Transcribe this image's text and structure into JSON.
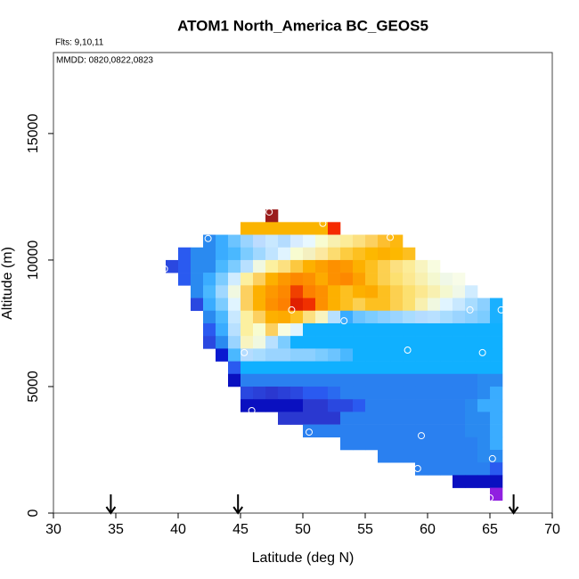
{
  "chart_data": {
    "type": "heatmap",
    "title": "ATOM1 North_America BC_GEOS5",
    "subtitle": "Flts: 9,10,11",
    "annotation": "MMDD: 0820,0822,0823",
    "x_label": "Latitude (deg N)",
    "y_label": "Altitude (m)",
    "xlim": [
      30,
      70
    ],
    "xticks": [
      30,
      35,
      40,
      45,
      50,
      55,
      60,
      65,
      70
    ],
    "ylim": [
      0,
      18200
    ],
    "yticks": [
      0,
      5000,
      10000,
      15000
    ],
    "rows": [
      {
        "y": 11500,
        "x0": 47,
        "colors": [
          "#9b1c1c"
        ]
      },
      {
        "y": 11000,
        "x0": 45,
        "colors": [
          "#fbb400",
          "#fbb400",
          "#fbb400",
          "#fbb400",
          "#fbb400",
          "#fbb400",
          "#fbb400",
          "#f52a00"
        ]
      },
      {
        "y": 10500,
        "x0": 42,
        "colors": [
          "#2a8af0",
          "#3aacff",
          "#6cc4ff",
          "#9ad4ff",
          "#bcdcff",
          "#c8e8ff",
          "#b4dcff",
          "#d8ecff",
          "#e8f8ff",
          "#f8fcd0",
          "#f8f0b0",
          "#fcec98",
          "#fce080",
          "#fcd060",
          "#fdbf30",
          "#fdb810"
        ]
      },
      {
        "y": 10000,
        "x0": 40,
        "colors": [
          "#2a5af0",
          "#2a8af0",
          "#2a8af0",
          "#3aacff",
          "#4ab8ff",
          "#7cccff",
          "#a0d8ff",
          "#c0e4ff",
          "#e0f4ff",
          "#f8fcd0",
          "#f4f0c0",
          "#fce8a0",
          "#fcdc70",
          "#fdcc40",
          "#fdc020",
          "#fdb800",
          "#fdb000",
          "#fdb800",
          "#fdbf20"
        ]
      },
      {
        "y": 9500,
        "x0": 39,
        "colors": [
          "#2a48e0",
          "#2a5af0",
          "#2a8af0",
          "#2a8af0",
          "#4ab8ff",
          "#7cccff",
          "#b8e0ff",
          "#f0f8e0",
          "#fcf0a0",
          "#fce080",
          "#fcc840",
          "#fdb000",
          "#fda000",
          "#fd9000",
          "#fd9800",
          "#fdb000",
          "#fdc020",
          "#fdd050",
          "#fce080",
          "#fcec98",
          "#f8f4c0",
          "#f8fce0"
        ]
      },
      {
        "y": 9000,
        "x0": 40,
        "colors": [
          "#2a5af0",
          "#2a8af0",
          "#3aacff",
          "#7cccff",
          "#d0ecff",
          "#fcf0a0",
          "#fcd060",
          "#fdb000",
          "#fd9800",
          "#fd8800",
          "#fd9000",
          "#fdaa00",
          "#fd9000",
          "#fd8800",
          "#fda000",
          "#fdc020",
          "#fcd050",
          "#fce070",
          "#fce890",
          "#f8f0b0",
          "#f4f8d0",
          "#f0f8e8",
          "#f8fce8"
        ]
      },
      {
        "y": 8500,
        "x0": 41,
        "colors": [
          "#2a8af0",
          "#4ab8ff",
          "#a0d8ff",
          "#f0f8e0",
          "#fcd060",
          "#fdb000",
          "#fd9800",
          "#fd8800",
          "#f04000",
          "#fd8000",
          "#fd9000",
          "#fdb000",
          "#fdc020",
          "#fdb000",
          "#fdaa00",
          "#fdc020",
          "#fcd050",
          "#fce070",
          "#fce890",
          "#f8f0b0",
          "#f4f8d0",
          "#f0f8e8",
          "#d0ecff"
        ]
      },
      {
        "y": 8000,
        "x0": 41,
        "colors": [
          "#2a48e0",
          "#3aacff",
          "#7cccff",
          "#e0f4ff",
          "#fcd060",
          "#fdb000",
          "#fd9000",
          "#fd8000",
          "#e02000",
          "#f03000",
          "#fd9000",
          "#fdb000",
          "#fdc020",
          "#fcd050",
          "#fdc020",
          "#fdc020",
          "#fcd050",
          "#fce070",
          "#f8f0b0",
          "#f0f8e0",
          "#e0f4ff",
          "#c8e8ff",
          "#a8dcff",
          "#8cd0ff",
          "#1ab0ff"
        ]
      },
      {
        "y": 7500,
        "x0": 42,
        "colors": [
          "#2a8af0",
          "#4ab8ff",
          "#c8e8ff",
          "#fcf0a0",
          "#fcd060",
          "#fdb000",
          "#fdaa00",
          "#fdc020",
          "#fce080",
          "#f8f4c0",
          "#b8e0ff",
          "#3aacff",
          "#6cc4ff",
          "#7cccff",
          "#8cd0ff",
          "#9ad4ff",
          "#a8dcff",
          "#b4dcff",
          "#b8e0ff",
          "#a8dcff",
          "#9ad4ff",
          "#8cd0ff",
          "#7cccff",
          "#1ab0ff"
        ]
      },
      {
        "y": 7000,
        "x0": 42,
        "colors": [
          "#2a5af0",
          "#3aacff",
          "#b8e0ff",
          "#fcf0a0",
          "#f8fcd0",
          "#fcd060",
          "#f8fce0",
          "#e0f4ff",
          "#10b0ff",
          "#10b0ff",
          "#10b0ff",
          "#10b0ff",
          "#10b0ff",
          "#10b0ff",
          "#10b0ff",
          "#10b0ff",
          "#10b0ff",
          "#10b0ff",
          "#10b0ff",
          "#10b0ff",
          "#10b0ff",
          "#10b0ff",
          "#10b0ff",
          "#10b0ff"
        ]
      },
      {
        "y": 6500,
        "x0": 42,
        "colors": [
          "#2a48e0",
          "#2a8af0",
          "#9ad4ff",
          "#f8f4c0",
          "#f0f8e0",
          "#b8e0ff",
          "#7cccff",
          "#10b0ff",
          "#10b0ff",
          "#10b0ff",
          "#10b0ff",
          "#10b0ff",
          "#10b0ff",
          "#10b0ff",
          "#10b0ff",
          "#10b0ff",
          "#10b0ff",
          "#10b0ff",
          "#10b0ff",
          "#10b0ff",
          "#10b0ff",
          "#10b0ff",
          "#10b0ff",
          "#10b0ff"
        ]
      },
      {
        "y": 6000,
        "x0": 43,
        "colors": [
          "#0a1ad0",
          "#4ab8ff",
          "#b4dcff",
          "#a8dcff",
          "#9ad4ff",
          "#9ad4ff",
          "#8cd0ff",
          "#8cd0ff",
          "#7cccff",
          "#6cc4ff",
          "#4ab8ff",
          "#10b0ff",
          "#10b0ff",
          "#10b0ff",
          "#10b0ff",
          "#10b0ff",
          "#10b0ff",
          "#10b0ff",
          "#10b0ff",
          "#10b0ff",
          "#10b0ff",
          "#10b0ff",
          "#10b0ff"
        ]
      },
      {
        "y": 5500,
        "x0": 44,
        "colors": [
          "#2a5af0",
          "#10b0ff",
          "#10b0ff",
          "#10b0ff",
          "#10b0ff",
          "#10b0ff",
          "#10b0ff",
          "#10b0ff",
          "#10b0ff",
          "#10b0ff",
          "#10b0ff",
          "#10b0ff",
          "#10b0ff",
          "#10b0ff",
          "#10b0ff",
          "#10b0ff",
          "#10b0ff",
          "#10b0ff",
          "#10b0ff",
          "#10b0ff",
          "#10b0ff",
          "#10b0ff"
        ]
      },
      {
        "y": 5000,
        "x0": 44,
        "colors": [
          "#0a10c0",
          "#2a80f0",
          "#2a80f0",
          "#2a80f0",
          "#2a80f0",
          "#2a80f0",
          "#2a80f0",
          "#2a80f0",
          "#2a80f0",
          "#2a80f0",
          "#2a80f0",
          "#2a80f0",
          "#2a80f0",
          "#2a80f0",
          "#2a80f0",
          "#2a80f0",
          "#2a80f0",
          "#2a80f0",
          "#2a80f0",
          "#2a80f0",
          "#2a8af0",
          "#2a8af0"
        ]
      },
      {
        "y": 4500,
        "x0": 45,
        "colors": [
          "#2a48e0",
          "#2a40d8",
          "#2a38d0",
          "#2a40d8",
          "#2a48e0",
          "#2a5af0",
          "#2a5af0",
          "#2a6af0",
          "#2a80f0",
          "#2a80f0",
          "#2a80f0",
          "#2a80f0",
          "#2a80f0",
          "#2a80f0",
          "#2a80f0",
          "#2a80f0",
          "#2a80f0",
          "#2a80f0",
          "#2a80f0",
          "#2a8af0",
          "#3aacff"
        ]
      },
      {
        "y": 4000,
        "x0": 45,
        "colors": [
          "#0a10c0",
          "#0a10c0",
          "#0a10c0",
          "#0a10c0",
          "#0a10c0",
          "#2a38d0",
          "#2a38d0",
          "#2a48e0",
          "#2a48e0",
          "#2a5af0",
          "#2a80f0",
          "#2a80f0",
          "#2a80f0",
          "#2a80f0",
          "#2a80f0",
          "#2a80f0",
          "#2a80f0",
          "#2a80f0",
          "#2a8af0",
          "#3aacff",
          "#3aacff"
        ]
      },
      {
        "y": 3500,
        "x0": 48,
        "colors": [
          "#2a38d0",
          "#2a38d0",
          "#2a38d0",
          "#2a38d0",
          "#2a38d0",
          "#2a80f0",
          "#2a80f0",
          "#2a80f0",
          "#2a80f0",
          "#2a80f0",
          "#2a80f0",
          "#2a80f0",
          "#2a80f0",
          "#2a80f0",
          "#2a80f0",
          "#2a8af0",
          "#2a8af0",
          "#3aacff"
        ]
      },
      {
        "y": 3000,
        "x0": 50,
        "colors": [
          "#2a80f0",
          "#2a80f0",
          "#2a80f0",
          "#2a80f0",
          "#2a80f0",
          "#2a80f0",
          "#2a80f0",
          "#2a80f0",
          "#2a80f0",
          "#2a80f0",
          "#2a80f0",
          "#2a80f0",
          "#2a80f0",
          "#2a8af0",
          "#2a8af0",
          "#3aacff"
        ]
      },
      {
        "y": 2500,
        "x0": 53,
        "colors": [
          "#2a80f0",
          "#2a80f0",
          "#2a80f0",
          "#2a80f0",
          "#2a80f0",
          "#2a80f0",
          "#2a80f0",
          "#2a80f0",
          "#2a80f0",
          "#2a80f0",
          "#2a80f0",
          "#2a8af0",
          "#3aacff"
        ]
      },
      {
        "y": 2000,
        "x0": 56,
        "colors": [
          "#2a80f0",
          "#2a80f0",
          "#2a80f0",
          "#2a80f0",
          "#2a80f0",
          "#2a80f0",
          "#2a80f0",
          "#2a80f0",
          "#2a8af0",
          "#2a8af0"
        ]
      },
      {
        "y": 1500,
        "x0": 59,
        "colors": [
          "#2a80f0",
          "#2a80f0",
          "#2a80f0",
          "#2a80f0",
          "#2a80f0",
          "#2a80f0",
          "#2a5af0"
        ]
      },
      {
        "y": 1000,
        "x0": 62,
        "colors": [
          "#0a10c0",
          "#0a10c0",
          "#0a10c0",
          "#0a10c0"
        ]
      },
      {
        "y": 500,
        "x0": 65,
        "colors": [
          "#9020e0"
        ]
      }
    ],
    "points": {
      "x": [
        42.4,
        38.9,
        47.3,
        51.6,
        57.0,
        49.1,
        53.3,
        45.3,
        58.4,
        64.4,
        63.4,
        65.9,
        45.9,
        50.5,
        59.5,
        59.2,
        65.2,
        65.0
      ],
      "y": [
        10850,
        9650,
        11900,
        11450,
        10900,
        8030,
        7600,
        6340,
        6440,
        6340,
        8030,
        8030,
        4050,
        3200,
        3060,
        1760,
        2150,
        600
      ]
    },
    "arrows_x": [
      34.6,
      44.8,
      66.9
    ]
  }
}
